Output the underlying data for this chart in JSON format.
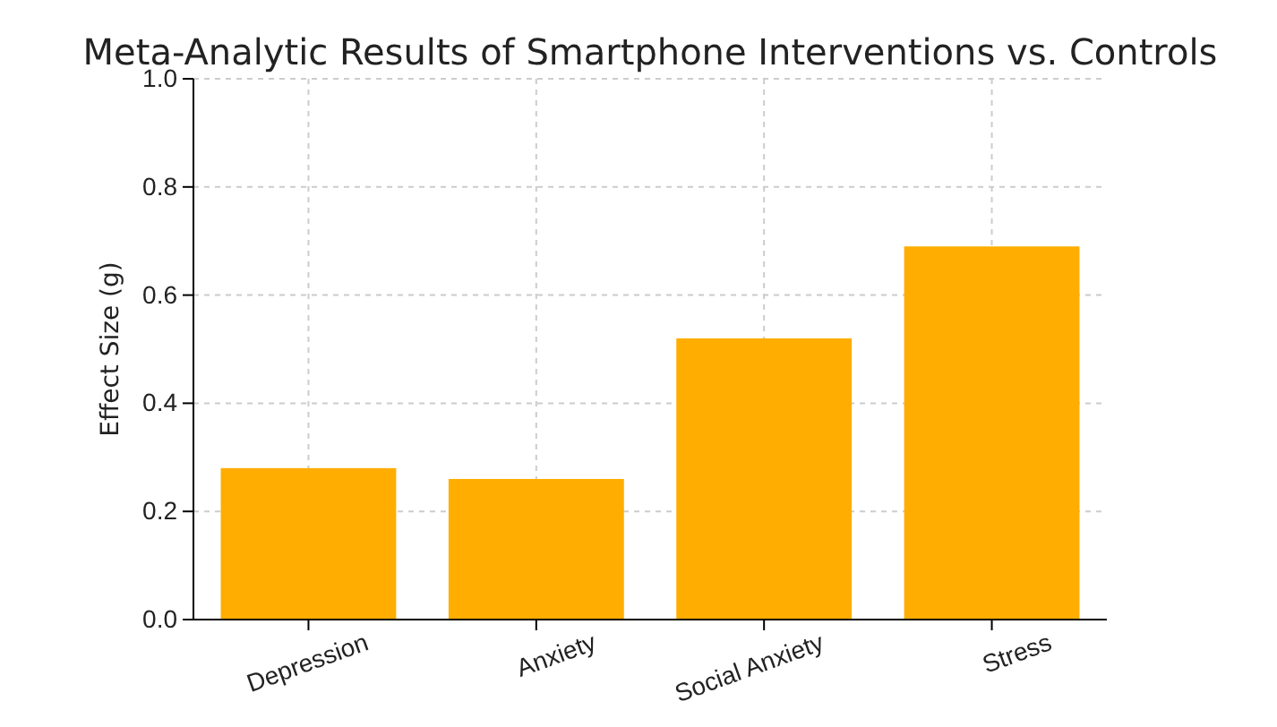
{
  "chart_data": {
    "type": "bar",
    "title": "Meta-Analytic Results of Smartphone Interventions vs. Controls",
    "ylabel": "Effect Size (g)",
    "categories": [
      "Depression",
      "Anxiety",
      "Social Anxiety",
      "Stress"
    ],
    "values": [
      0.28,
      0.26,
      0.52,
      0.69
    ],
    "color": "#ffad00",
    "ylim": [
      0,
      1
    ],
    "yticks": [
      {
        "value": 0,
        "label": "0.0"
      },
      {
        "value": 0.2,
        "label": "0.2"
      },
      {
        "value": 0.4,
        "label": "0.4"
      },
      {
        "value": 0.6,
        "label": "0.6"
      },
      {
        "value": 0.8,
        "label": "0.8"
      },
      {
        "value": 1,
        "label": "1.0"
      }
    ],
    "grid": true
  }
}
